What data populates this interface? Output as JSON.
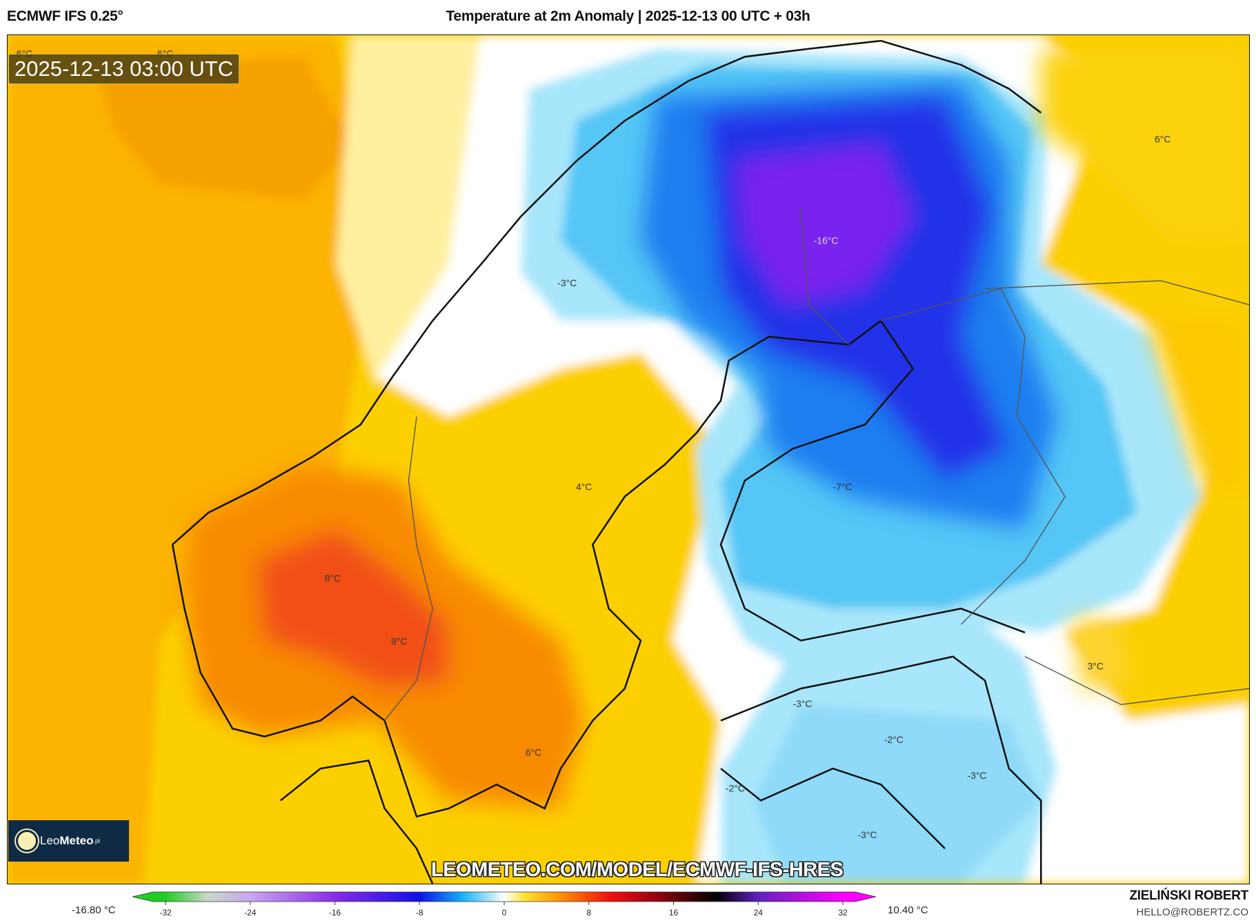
{
  "header": {
    "model": "ECMWF IFS 0.25°",
    "title": "Temperature at 2m Anomaly | 2025-12-13 00 UTC + 03h"
  },
  "map": {
    "valid_time": "2025-12-13 03:00 UTC",
    "contour_labels": [
      "6°C",
      "6°C",
      "6°C",
      "-16°C",
      "-3°C",
      "4°C",
      "-7°C",
      "8°C",
      "9°C",
      "3°C",
      "-3°C",
      "-2°C",
      "-3°C",
      "6°C",
      "-2°C",
      "-3°C"
    ],
    "watermark": "LEOMETEO.COM/MODEL/ECMWF-IFS-HRES",
    "logo": {
      "name": "LeoMeteo",
      "part1": "Leo",
      "part2": "Meteo",
      "suffix": ".pl"
    }
  },
  "colorbar": {
    "min_label": "-16.80 °C",
    "max_label": "10.40 °C",
    "ticks": [
      "-32",
      "-24",
      "-16",
      "-8",
      "0",
      "8",
      "16",
      "24",
      "32"
    ],
    "range": [
      -32,
      32
    ],
    "colors": {
      "-32": "#22cc22",
      "-28": "#c8d8c8",
      "-24": "#c8a8f0",
      "-16": "#8a2be8",
      "-8": "#1010e8",
      "-4": "#10b0f8",
      "0": "#ffffff",
      "2": "#ffe030",
      "5": "#fb9a00",
      "10": "#f01010",
      "14": "#a00010",
      "20": "#000000",
      "24": "#6020c0",
      "32": "#ff00ff"
    }
  },
  "credits": {
    "author": "ZIELIŃSKI ROBERT",
    "email": "HELLO@ROBERTZ.CO"
  }
}
